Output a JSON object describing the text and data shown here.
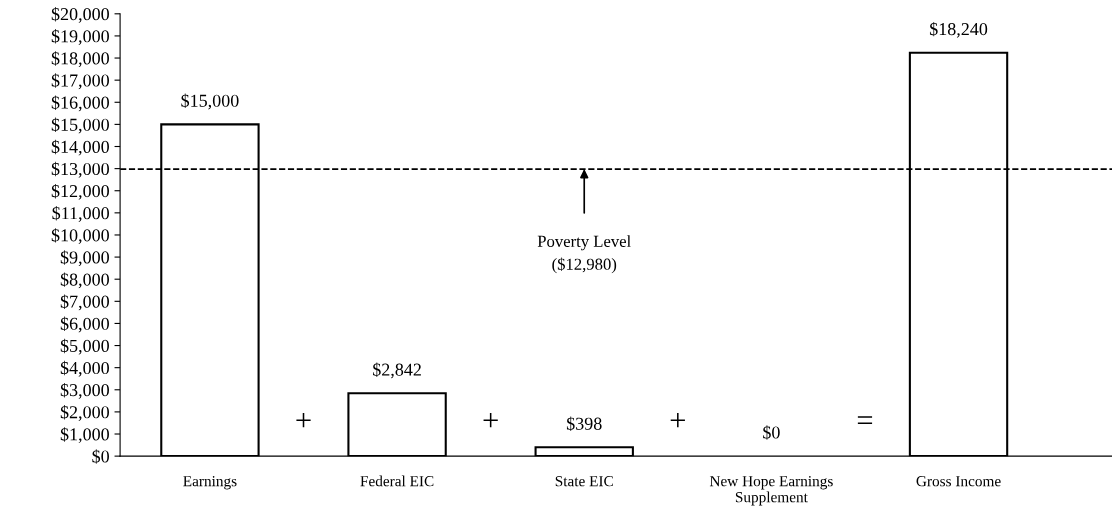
{
  "chart_data": {
    "type": "bar",
    "categories": [
      "Earnings",
      "Federal EIC",
      "State EIC",
      "New Hope Earnings\nSupplement",
      "Gross Income"
    ],
    "values": [
      15000,
      2842,
      398,
      0,
      18240
    ],
    "value_labels": [
      "$15,000",
      "$2,842",
      "$398",
      "$0",
      "$18,240"
    ],
    "color": "#ffffff",
    "ylim": [
      0,
      20000
    ],
    "yticks": [
      {
        "value": 0,
        "label": "$0"
      },
      {
        "value": 1000,
        "label": "$1,000"
      },
      {
        "value": 2000,
        "label": "$2,000"
      },
      {
        "value": 3000,
        "label": "$3,000"
      },
      {
        "value": 4000,
        "label": "$4,000"
      },
      {
        "value": 5000,
        "label": "$5,000"
      },
      {
        "value": 6000,
        "label": "$6,000"
      },
      {
        "value": 7000,
        "label": "$7,000"
      },
      {
        "value": 8000,
        "label": "$8,000"
      },
      {
        "value": 9000,
        "label": "$9,000"
      },
      {
        "value": 10000,
        "label": "$10,000"
      },
      {
        "value": 11000,
        "label": "$11,000"
      },
      {
        "value": 12000,
        "label": "$12,000"
      },
      {
        "value": 13000,
        "label": "$13,000"
      },
      {
        "value": 14000,
        "label": "$14,000"
      },
      {
        "value": 15000,
        "label": "$15,000"
      },
      {
        "value": 16000,
        "label": "$16,000"
      },
      {
        "value": 17000,
        "label": "$17,000"
      },
      {
        "value": 18000,
        "label": "$18,000"
      },
      {
        "value": 19000,
        "label": "$19,000"
      },
      {
        "value": 20000,
        "label": "$20,000"
      }
    ],
    "ref_lines": [
      {
        "axis": "y",
        "value": 12980,
        "line_style": "dashed",
        "color": "#000000"
      }
    ],
    "annotations": [
      "Poverty Level\n($12,980)",
      "+",
      "+",
      "+",
      "="
    ],
    "grid": false,
    "legend": false
  }
}
